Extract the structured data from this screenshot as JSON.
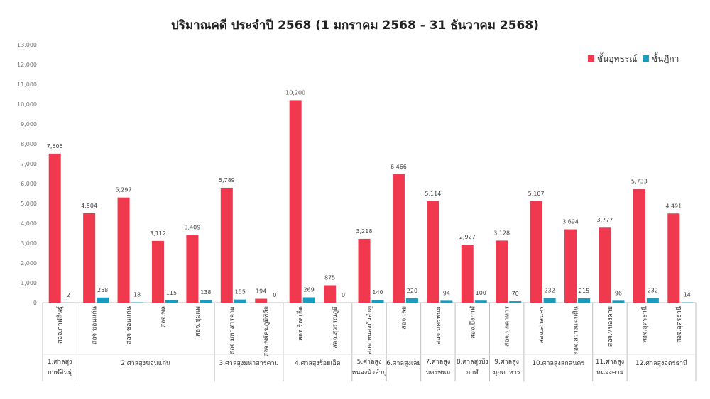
{
  "chart_data": {
    "type": "bar",
    "title": "ปริมาณคดี ประจำปี 2568 (1 มกราคม 2568 - 31 ธันวาคม 2568)",
    "xlabel": "",
    "ylabel": "",
    "ylim": [
      0,
      13000
    ],
    "yticks": [
      "0",
      "1,000",
      "2,000",
      "3,000",
      "4,000",
      "5,000",
      "6,000",
      "7,000",
      "8,000",
      "9,000",
      "10,000",
      "11,000",
      "12,000",
      "13,000"
    ],
    "legend_position": "top-right",
    "grid": false,
    "categories": [
      "สอจ.กาฬสินธุ์",
      "สอจ.ขอนแก่น",
      "สอจ.ชอนแก่น",
      "สอจ.พล",
      "สอจ.ชุมแพ",
      "สอจ.มหาสารคาม",
      "สอจ.พยัคฆภูมิพิสัย",
      "สอจ.ร้อยเอ็ด",
      "สอจ.สุวรรณภูมิ",
      "สอจ.หนองบัวลำภู",
      "สอจ.เลย",
      "สอจ.นครพนม",
      "สอจ.บึงกาฬ",
      "สอจ.มุกดาหาร",
      "สอจ.สกลนคร",
      "สอจ.สว่างแดนดิน",
      "สอจ.หนองคาย",
      "สอจ.อุดรธานี",
      "สอจ.อุดรธานี"
    ],
    "series": [
      {
        "name": "ชั้นอุทธรณ์",
        "color": "#f0394f",
        "values": [
          7505,
          4504,
          5297,
          3112,
          3409,
          5789,
          194,
          10200,
          875,
          3218,
          6466,
          5114,
          2927,
          3128,
          5107,
          3694,
          3777,
          5733,
          4491
        ],
        "labels": [
          "7,505",
          "4,504",
          "5,297",
          "3,112",
          "3,409",
          "5,789",
          "194",
          "10,200",
          "875",
          "3,218",
          "6,466",
          "5,114",
          "2,927",
          "3,128",
          "5,107",
          "3,694",
          "3,777",
          "5,733",
          "4,491"
        ]
      },
      {
        "name": "ชั้นฎีกา",
        "color": "#1a9bbf",
        "values": [
          2,
          258,
          18,
          115,
          138,
          155,
          0,
          269,
          0,
          140,
          220,
          94,
          100,
          70,
          232,
          215,
          96,
          232,
          14
        ],
        "labels": [
          "2",
          "258",
          "18",
          "115",
          "138",
          "155",
          "0",
          "269",
          "0",
          "140",
          "220",
          "94",
          "100",
          "70",
          "232",
          "215",
          "96",
          "232",
          "14"
        ]
      }
    ],
    "groups": [
      {
        "lines": [
          "1.ศาลสูง",
          "กาฬสินธุ์"
        ],
        "span": [
          0,
          0
        ]
      },
      {
        "lines": [
          "2.ศาลสูงขอนแก่น"
        ],
        "span": [
          1,
          4
        ]
      },
      {
        "lines": [
          "3.ศาลสูงมหาสารคาม"
        ],
        "span": [
          5,
          6
        ]
      },
      {
        "lines": [
          "4.ศาลสูงร้อยเอ็ด"
        ],
        "span": [
          7,
          8
        ]
      },
      {
        "lines": [
          "5.ศาลสูง",
          "หนองบัวลำภู"
        ],
        "span": [
          9,
          9
        ]
      },
      {
        "lines": [
          "6.ศาลสูงเลย"
        ],
        "span": [
          10,
          10
        ]
      },
      {
        "lines": [
          "7.ศาลสูง",
          "นครพนม"
        ],
        "span": [
          11,
          11
        ]
      },
      {
        "lines": [
          "8.ศาลสูงบึง",
          "กาฬ"
        ],
        "span": [
          12,
          12
        ]
      },
      {
        "lines": [
          "9.ศาลสูง",
          "มุกดาหาร"
        ],
        "span": [
          13,
          13
        ]
      },
      {
        "lines": [
          "10.ศาลสูงสกลนคร"
        ],
        "span": [
          14,
          15
        ]
      },
      {
        "lines": [
          "11.ศาลสูง",
          "หนองคาย"
        ],
        "span": [
          16,
          16
        ]
      },
      {
        "lines": [
          "12.ศาลสูงอุดรธานี"
        ],
        "span": [
          17,
          18
        ]
      }
    ]
  }
}
